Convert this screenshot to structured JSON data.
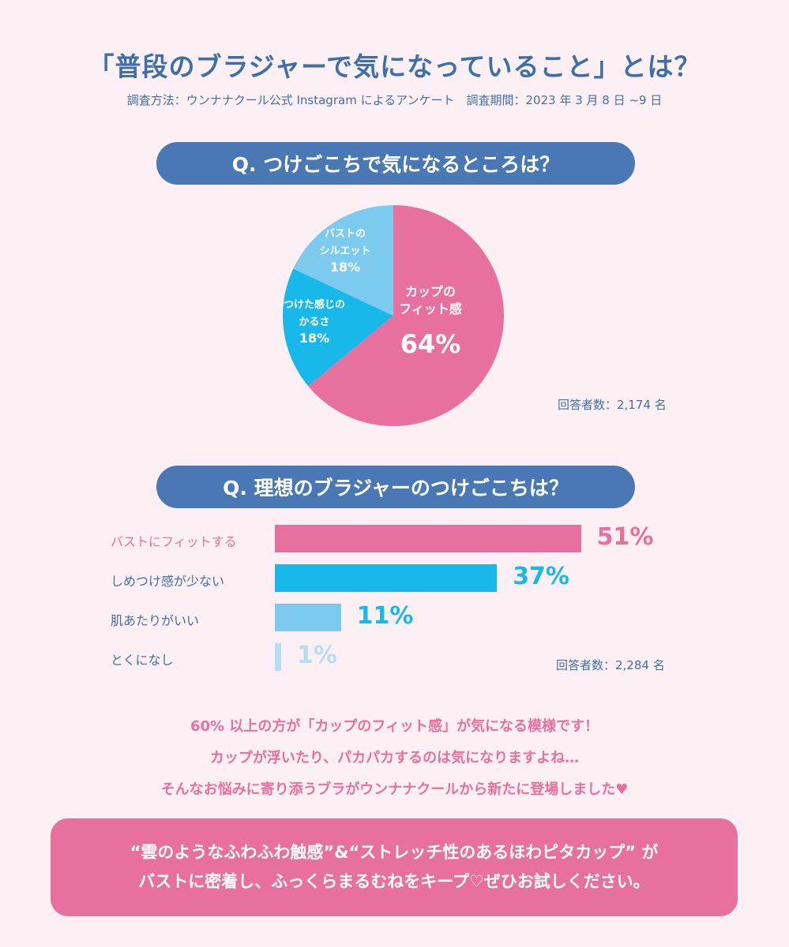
{
  "header": {
    "title": "「普段のブラジャーで気になっていること」とは？",
    "subtitle": "調査方法：ウンナナクール公式 Instagram によるアンケート　調査期間：2023 年 3 月 8 日 ~9 日"
  },
  "colors": {
    "pink": "#e8709f",
    "blue": "#18b8ea",
    "light_blue": "#7ccbef",
    "pale_blue": "#b4def2",
    "navy": "#4a78b4",
    "background": "#fdf0f4"
  },
  "chart_data": [
    {
      "type": "pie",
      "title": "Q. つけごこちで気になるところは？",
      "slices": [
        {
          "label_lines": [
            "カップの",
            "フィット感"
          ],
          "value": 64,
          "value_label": "64%",
          "color": "#e8709f"
        },
        {
          "label_lines": [
            "つけた感じの",
            "かるさ"
          ],
          "value": 18,
          "value_label": "18%",
          "color": "#18b8ea"
        },
        {
          "label_lines": [
            "バストの",
            "シルエット"
          ],
          "value": 18,
          "value_label": "18%",
          "color": "#7ccbef"
        }
      ],
      "respondents": "回答者数：2,174 名"
    },
    {
      "type": "bar",
      "orientation": "horizontal",
      "title": "Q. 理想のブラジャーのつけごこちは？",
      "categories": [
        "バストにフィットする",
        "しめつけ感が少ない",
        "肌あたりがいい",
        "とくになし"
      ],
      "values": [
        51,
        37,
        11,
        1
      ],
      "value_labels": [
        "51%",
        "37%",
        "11%",
        "1%"
      ],
      "colors": [
        "#e8709f",
        "#18b8ea",
        "#7ccbef",
        "#b4def2"
      ],
      "respondents": "回答者数：2,284 名"
    }
  ],
  "message": [
    "60% 以上の方が「カップのフィット感」が気になる模様です！",
    "カップが浮いたり、パカパカするのは気になりますよね…",
    "そんなお悩みに寄り添うブラがウンナナクールから新たに登場しました♥"
  ],
  "callout": [
    "“雲のようなふわふわ触感”&“ストレッチ性のあるほわピタカップ” が",
    "バストに密着し、ふっくらまるむねをキープ♡ぜひお試しください。"
  ]
}
